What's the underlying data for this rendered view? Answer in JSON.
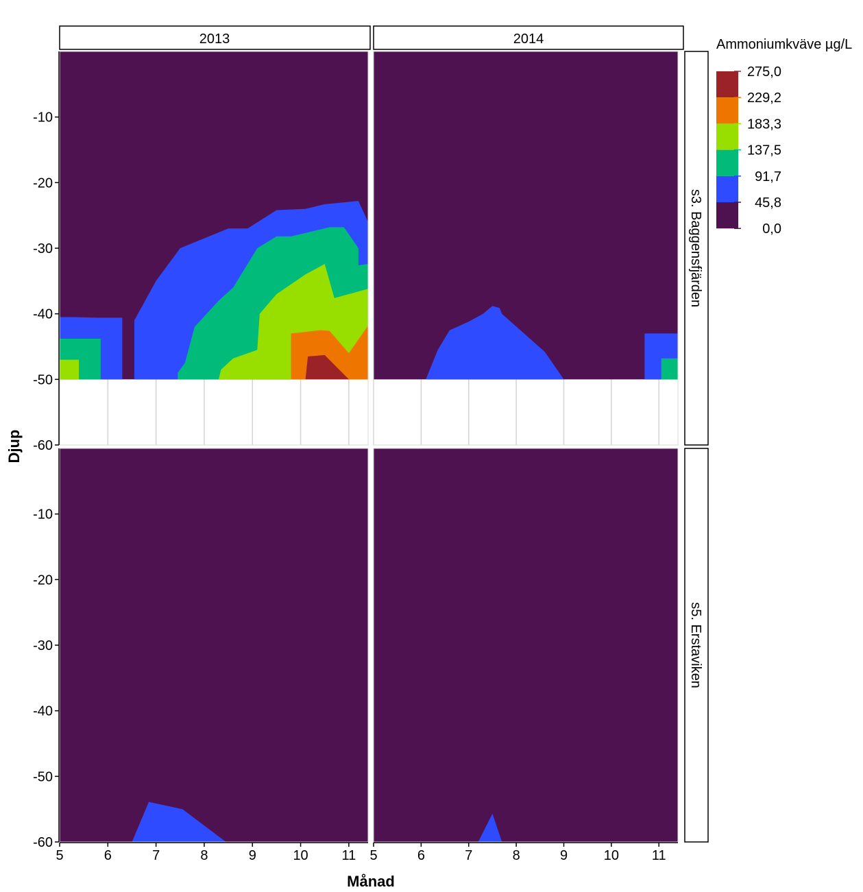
{
  "chart_data": {
    "type": "heatmap",
    "subtype": "filled-contour",
    "xlabel": "Månad",
    "ylabel": "Djup",
    "xlim": [
      5,
      11.4
    ],
    "ylim": [
      -60,
      0
    ],
    "x_ticks": [
      5,
      6,
      7,
      8,
      9,
      10,
      11
    ],
    "y_ticks": [
      -60,
      -50,
      -40,
      -30,
      -20,
      -10
    ],
    "grid": true,
    "facet_cols": [
      "2013",
      "2014"
    ],
    "facet_rows": [
      "s3. Baggensfjärden",
      "s5. Erstaviken"
    ],
    "legend": {
      "title": "Ammoniumkväve µg/L",
      "position": "right",
      "breaks": [
        "275,0",
        "229,2",
        "183,3",
        "137,5",
        "91,7",
        "45,8",
        "0,0"
      ],
      "colors": [
        "#9b2226",
        "#ee7600",
        "#98df00",
        "#00bb7a",
        "#2f4bff",
        "#4f1250"
      ]
    },
    "background_color": "#4f1250",
    "panels": [
      {
        "row": "s3. Baggensfjärden",
        "col": "2013",
        "max_depth": -50,
        "regions": [
          {
            "level": 45.8,
            "color": "#2f4bff",
            "points": [
              [
                5,
                -50
              ],
              [
                5,
                -40.5
              ],
              [
                5.3,
                -40.5
              ],
              [
                5.8,
                -40.6
              ],
              [
                6.3,
                -40.6
              ],
              [
                6.3,
                -50
              ]
            ]
          },
          {
            "level": 91.7,
            "color": "#00bb7a",
            "points": [
              [
                5,
                -50
              ],
              [
                5,
                -43.8
              ],
              [
                5.5,
                -43.8
              ],
              [
                5.85,
                -43.8
              ],
              [
                5.85,
                -50
              ]
            ]
          },
          {
            "level": 137.5,
            "color": "#98df00",
            "points": [
              [
                5,
                -50
              ],
              [
                5,
                -47
              ],
              [
                5.4,
                -47
              ],
              [
                5.4,
                -50
              ]
            ]
          },
          {
            "level": 45.8,
            "color": "#2f4bff",
            "points": [
              [
                6.55,
                -50
              ],
              [
                6.55,
                -41
              ],
              [
                7,
                -35
              ],
              [
                7.5,
                -30
              ],
              [
                8,
                -28.5
              ],
              [
                8.5,
                -27
              ],
              [
                8.9,
                -27
              ],
              [
                9.5,
                -24.2
              ],
              [
                10.1,
                -24
              ],
              [
                10.5,
                -23.3
              ],
              [
                11.2,
                -22.8
              ],
              [
                11.4,
                -26
              ],
              [
                11.4,
                -50
              ]
            ]
          },
          {
            "level": 91.7,
            "color": "#00bb7a",
            "points": [
              [
                7.45,
                -50
              ],
              [
                7.45,
                -49
              ],
              [
                7.6,
                -47.5
              ],
              [
                7.8,
                -42
              ],
              [
                8.3,
                -38
              ],
              [
                8.6,
                -36
              ],
              [
                9.1,
                -30
              ],
              [
                9.5,
                -28.2
              ],
              [
                9.8,
                -28.2
              ],
              [
                10.2,
                -27.5
              ],
              [
                10.6,
                -26.8
              ],
              [
                10.9,
                -26.8
              ],
              [
                11.2,
                -30
              ],
              [
                11.2,
                -32.6
              ],
              [
                11.4,
                -32.4
              ],
              [
                11.4,
                -50
              ]
            ]
          },
          {
            "level": 137.5,
            "color": "#98df00",
            "points": [
              [
                8.3,
                -50
              ],
              [
                8.35,
                -48.5
              ],
              [
                8.6,
                -46.8
              ],
              [
                9.1,
                -45.5
              ],
              [
                9.15,
                -40
              ],
              [
                9.5,
                -37
              ],
              [
                10.1,
                -34
              ],
              [
                10.5,
                -32.4
              ],
              [
                10.7,
                -37.6
              ],
              [
                11.4,
                -36.2
              ],
              [
                11.4,
                -50
              ]
            ]
          },
          {
            "level": 183.3,
            "color": "#ee7600",
            "points": [
              [
                9.8,
                -50
              ],
              [
                9.8,
                -43
              ],
              [
                10.4,
                -42.5
              ],
              [
                10.6,
                -42.6
              ],
              [
                11,
                -46
              ],
              [
                11.4,
                -41.8
              ],
              [
                11.4,
                -50
              ]
            ]
          },
          {
            "level": 229.2,
            "color": "#9b2226",
            "points": [
              [
                10.1,
                -50
              ],
              [
                10.15,
                -46.5
              ],
              [
                10.5,
                -46.3
              ],
              [
                11,
                -50
              ]
            ]
          }
        ]
      },
      {
        "row": "s3. Baggensfjärden",
        "col": "2014",
        "max_depth": -50,
        "regions": [
          {
            "level": 45.8,
            "color": "#2f4bff",
            "points": [
              [
                6.1,
                -50
              ],
              [
                6.35,
                -45.5
              ],
              [
                6.6,
                -42.5
              ],
              [
                7,
                -41.2
              ],
              [
                7.3,
                -40
              ],
              [
                7.5,
                -38.8
              ],
              [
                7.65,
                -39.1
              ],
              [
                7.7,
                -40
              ],
              [
                8.6,
                -45.8
              ],
              [
                9,
                -50
              ]
            ]
          },
          {
            "level": 45.8,
            "color": "#2f4bff",
            "points": [
              [
                10.7,
                -50
              ],
              [
                10.7,
                -43
              ],
              [
                11.4,
                -43
              ],
              [
                11.4,
                -50
              ]
            ]
          },
          {
            "level": 91.7,
            "color": "#00bb7a",
            "points": [
              [
                11.05,
                -50
              ],
              [
                11.05,
                -46.8
              ],
              [
                11.4,
                -46.8
              ],
              [
                11.4,
                -50
              ]
            ]
          }
        ]
      },
      {
        "row": "s5. Erstaviken",
        "col": "2013",
        "max_depth": -60,
        "regions": [
          {
            "level": 45.8,
            "color": "#2f4bff",
            "points": [
              [
                6.5,
                -60
              ],
              [
                6.85,
                -53.9
              ],
              [
                7.55,
                -55
              ],
              [
                8.45,
                -60
              ]
            ]
          }
        ]
      },
      {
        "row": "s5. Erstaviken",
        "col": "2014",
        "max_depth": -60,
        "regions": [
          {
            "level": 45.8,
            "color": "#2f4bff",
            "points": [
              [
                7.2,
                -60
              ],
              [
                7.5,
                -55.7
              ],
              [
                7.7,
                -60
              ]
            ]
          }
        ]
      }
    ]
  }
}
